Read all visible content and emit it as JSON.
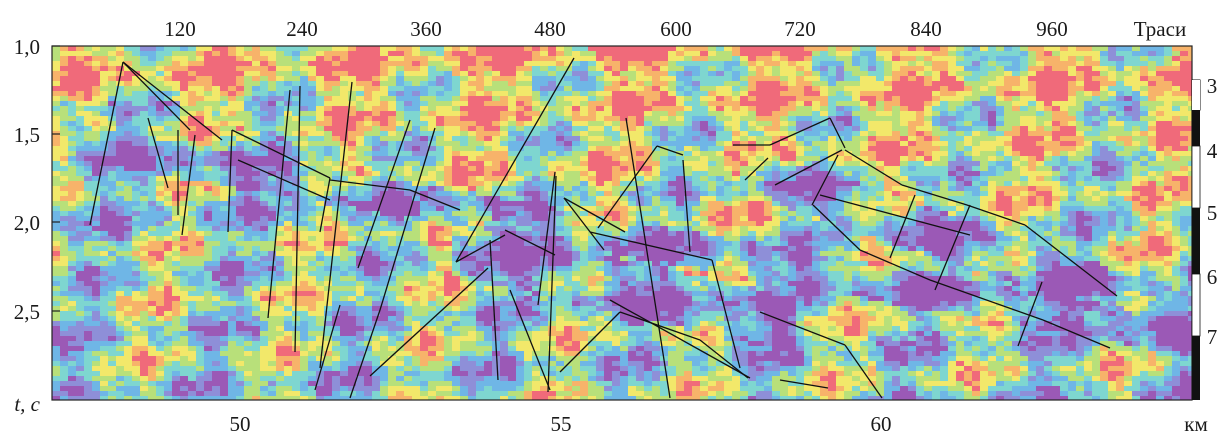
{
  "figure": {
    "top_axis": {
      "ticks": [
        "120",
        "240",
        "360",
        "480",
        "600",
        "720",
        "840",
        "960"
      ],
      "label": "Траси"
    },
    "left_axis": {
      "ticks": [
        "1,0",
        "1,5",
        "2,0",
        "2,5"
      ],
      "label": "t, с"
    },
    "bottom_axis": {
      "ticks": [
        "50",
        "55",
        "60"
      ],
      "label": "км"
    },
    "right_scale": {
      "ticks": [
        "3",
        "4",
        "5",
        "6",
        "7"
      ]
    },
    "palette": [
      "#9b59b6",
      "#8e8fd8",
      "#6fb6e6",
      "#7ed6d0",
      "#b8e07a",
      "#f2e86a",
      "#f7b36a",
      "#f06a7a"
    ]
  }
}
